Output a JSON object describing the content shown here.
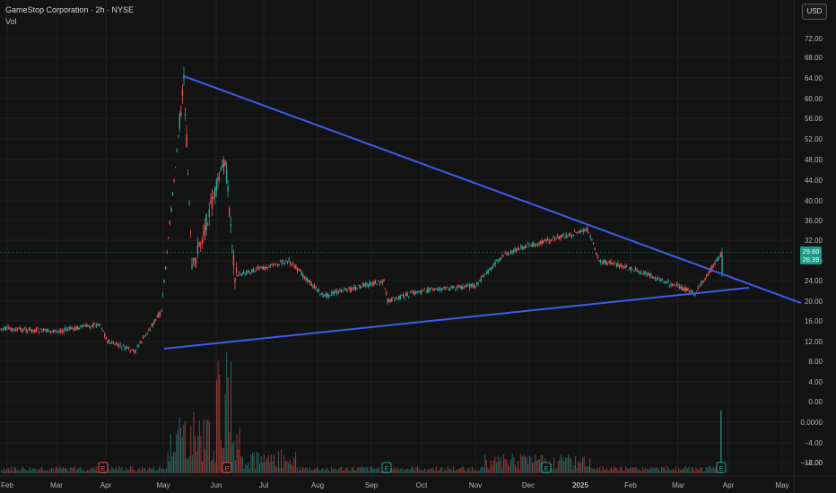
{
  "header": {
    "title": "GameStop Corporation · 2h · NYSE",
    "volume_label": "Vol"
  },
  "currency_button": "USD",
  "price_tag": {
    "price": "29.60",
    "countdown": "26:39",
    "color": "#1e9b86"
  },
  "colors": {
    "background": "#131313",
    "grid": "#1f1f1f",
    "up": "#26a69a",
    "down": "#ef5350",
    "trendline": "#3d5de8",
    "axis_text": "#b2b5be"
  },
  "chart_data": {
    "type": "candlestick",
    "price_axis_ticks": [
      "72.00",
      "68.00",
      "64.00",
      "60.00",
      "56.00",
      "52.00",
      "48.00",
      "44.00",
      "40.00",
      "36.00",
      "32.00",
      "28.00",
      "24.00",
      "20.00",
      "16.00",
      "12.00",
      "8.00",
      "4.00",
      "0.00",
      "0.0000",
      "−4.00",
      "−8.00",
      "−12.00"
    ],
    "x_axis_ticks": [
      "Feb",
      "Mar",
      "Apr",
      "May",
      "Jun",
      "Jul",
      "Aug",
      "Sep",
      "Oct",
      "Nov",
      "Dec",
      "2025",
      "Feb",
      "Mar",
      "Apr",
      "May"
    ],
    "price_series": [
      {
        "date": "Feb",
        "price": 14.5
      },
      {
        "date": "Mar",
        "price": 14.0
      },
      {
        "date": "Apr",
        "price": 15.5
      },
      {
        "date": "Apr",
        "price": 12.0
      },
      {
        "date": "May",
        "price": 10.0
      },
      {
        "date": "May",
        "price": 18.0
      },
      {
        "date": "May",
        "price": 64.0
      },
      {
        "date": "May",
        "price": 26.0
      },
      {
        "date": "Jun",
        "price": 48.0
      },
      {
        "date": "Jun",
        "price": 25.0
      },
      {
        "date": "Jul",
        "price": 28.0
      },
      {
        "date": "Aug",
        "price": 21.0
      },
      {
        "date": "Sep",
        "price": 24.0
      },
      {
        "date": "Sep",
        "price": 20.0
      },
      {
        "date": "Oct",
        "price": 22.0
      },
      {
        "date": "Nov",
        "price": 23.0
      },
      {
        "date": "Nov",
        "price": 29.0
      },
      {
        "date": "Dec",
        "price": 31.0
      },
      {
        "date": "2025",
        "price": 34.0
      },
      {
        "date": "2025",
        "price": 28.0
      },
      {
        "date": "Feb",
        "price": 26.0
      },
      {
        "date": "Mar",
        "price": 21.5
      },
      {
        "date": "Mar",
        "price": 29.6
      }
    ],
    "trendlines": [
      {
        "name": "upper",
        "from": {
          "date": "May",
          "price": 64.0
        },
        "to": {
          "date": "May",
          "price": 19.5
        }
      },
      {
        "name": "lower",
        "from": {
          "date": "May",
          "price": 10.5
        },
        "to": {
          "date": "Apr",
          "price": 22.5
        }
      }
    ],
    "earnings_markers": [
      {
        "label": "E",
        "color": "#ef5350"
      },
      {
        "label": "E",
        "color": "#ef5350"
      },
      {
        "label": "E",
        "color": "#26a69a"
      },
      {
        "label": "E",
        "color": "#26a69a"
      },
      {
        "label": "E",
        "color": "#26a69a"
      }
    ],
    "last_price": 29.6
  }
}
